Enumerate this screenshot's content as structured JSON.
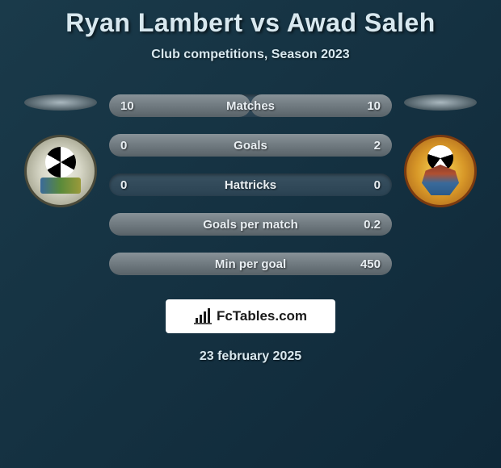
{
  "header": {
    "title": "Ryan Lambert vs Awad Saleh",
    "subtitle": "Club competitions, Season 2023"
  },
  "stats": {
    "rows": [
      {
        "label": "Matches",
        "left": "10",
        "right": "10",
        "left_fill": 50,
        "right_fill": 50
      },
      {
        "label": "Goals",
        "left": "0",
        "right": "2",
        "left_fill": 0,
        "right_fill": 100
      },
      {
        "label": "Hattricks",
        "left": "0",
        "right": "0",
        "left_fill": 0,
        "right_fill": 0
      },
      {
        "label": "Goals per match",
        "left": "",
        "right": "0.2",
        "left_fill": 0,
        "right_fill": 100
      },
      {
        "label": "Min per goal",
        "left": "",
        "right": "450",
        "left_fill": 0,
        "right_fill": 100
      }
    ],
    "bar_bg": "#2a4252",
    "bar_fill": "#687278",
    "text_color": "#e8eef2"
  },
  "footer": {
    "logo_text": "FcTables.com",
    "date": "23 february 2025"
  },
  "colors": {
    "page_bg_from": "#1a3a4a",
    "page_bg_to": "#0f2838"
  }
}
